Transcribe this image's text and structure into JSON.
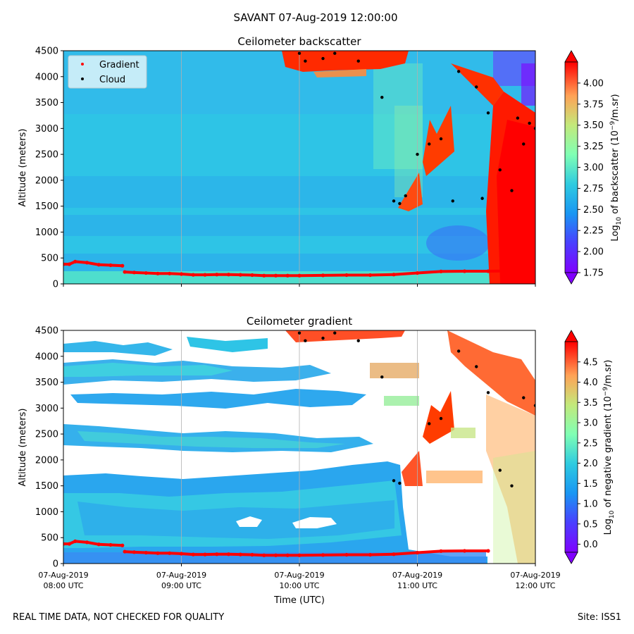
{
  "suptitle": "SAVANT 07-Aug-2019 12:00:00",
  "footer_left": "REAL TIME DATA, NOT CHECKED FOR QUALITY",
  "footer_right": "Site: ISS1",
  "xlabel": "Time (UTC)",
  "x_tick_labels": [
    [
      "07-Aug-2019",
      "08:00 UTC"
    ],
    [
      "07-Aug-2019",
      "09:00 UTC"
    ],
    [
      "07-Aug-2019",
      "10:00 UTC"
    ],
    [
      "07-Aug-2019",
      "11:00 UTC"
    ],
    [
      "07-Aug-2019",
      "12:00 UTC"
    ]
  ],
  "colors": {
    "gradient_marker": "#ff0000",
    "cloud_marker": "#000000",
    "background_cyan": "#2ec4e6"
  },
  "chart_data": [
    {
      "type": "heatmap",
      "title": "Ceilometer backscatter",
      "ylabel": "Altitude (meters)",
      "xlim": [
        "07-Aug-2019 08:00",
        "07-Aug-2019 12:00"
      ],
      "ylim": [
        0,
        4500
      ],
      "y_ticks": [
        0,
        500,
        1000,
        1500,
        2000,
        2500,
        3000,
        3500,
        4000,
        4500
      ],
      "colormap": "rainbow",
      "colorbar_label": "Log10 of backscatter (10^-9/m.sr)",
      "colorbar_range": [
        1.75,
        4.25
      ],
      "colorbar_ticks": [
        "1.75",
        "2.00",
        "2.25",
        "2.50",
        "2.75",
        "3.00",
        "3.25",
        "3.50",
        "3.75",
        "4.00"
      ],
      "legend": {
        "position": "upper-left",
        "entries": [
          {
            "name": "Gradient",
            "color": "#ff0000"
          },
          {
            "name": "Cloud",
            "color": "#000000"
          }
        ]
      },
      "grid": "vertical lines at hourly ticks",
      "gradient_series": {
        "x_hours": [
          8.0,
          8.05,
          8.1,
          8.2,
          8.3,
          8.4,
          8.5,
          8.52,
          8.6,
          8.7,
          8.8,
          8.9,
          9.0,
          9.1,
          9.2,
          9.3,
          9.4,
          9.5,
          9.6,
          9.7,
          9.8,
          9.9,
          10.0,
          10.2,
          10.4,
          10.6,
          10.8,
          11.0,
          11.2,
          11.4,
          11.6,
          11.75
        ],
        "altitude_m": [
          380,
          380,
          430,
          410,
          370,
          360,
          350,
          230,
          220,
          210,
          200,
          200,
          190,
          175,
          175,
          180,
          180,
          175,
          170,
          160,
          160,
          160,
          160,
          165,
          170,
          170,
          180,
          210,
          240,
          245,
          245,
          250
        ]
      },
      "cloud_series": {
        "x_hours": [
          10.0,
          10.05,
          10.2,
          10.3,
          10.5,
          10.7,
          10.8,
          10.85,
          10.9,
          11.0,
          11.1,
          11.2,
          11.3,
          11.35,
          11.5,
          11.55,
          11.6,
          11.7,
          11.8,
          11.85,
          11.9,
          11.95,
          12.0
        ],
        "altitude_m": [
          4450,
          4300,
          4350,
          4450,
          4300,
          3600,
          1600,
          1550,
          1700,
          2500,
          2700,
          2800,
          1600,
          4100,
          3800,
          1650,
          3300,
          2200,
          1800,
          3200,
          2700,
          3100,
          3000
        ]
      }
    },
    {
      "type": "heatmap",
      "title": "Ceilometer gradient",
      "ylabel": "Altitude (meters)",
      "xlabel": "Time (UTC)",
      "xlim": [
        "07-Aug-2019 08:00",
        "07-Aug-2019 12:00"
      ],
      "ylim": [
        0,
        4500
      ],
      "y_ticks": [
        0,
        500,
        1000,
        1500,
        2000,
        2500,
        3000,
        3500,
        4000,
        4500
      ],
      "colormap": "rainbow",
      "colorbar_label": "Log10 of negative gradient (10^-9/m.sr)",
      "colorbar_range": [
        -0.2,
        5.0
      ],
      "colorbar_ticks": [
        "0.0",
        "0.5",
        "1.0",
        "1.5",
        "2.0",
        "2.5",
        "3.0",
        "3.5",
        "4.0",
        "4.5"
      ],
      "grid": "vertical lines at hourly ticks",
      "gradient_series": {
        "x_hours": [
          8.0,
          8.05,
          8.1,
          8.2,
          8.3,
          8.4,
          8.5,
          8.52,
          8.6,
          8.7,
          8.8,
          8.9,
          9.0,
          9.1,
          9.2,
          9.3,
          9.4,
          9.5,
          9.6,
          9.7,
          9.8,
          9.9,
          10.0,
          10.2,
          10.4,
          10.6,
          10.8,
          11.0,
          11.2,
          11.4,
          11.6
        ],
        "altitude_m": [
          380,
          380,
          430,
          410,
          370,
          360,
          350,
          230,
          220,
          210,
          200,
          200,
          190,
          175,
          175,
          180,
          180,
          175,
          170,
          160,
          160,
          160,
          160,
          165,
          170,
          170,
          180,
          210,
          240,
          245,
          245
        ]
      },
      "cloud_series": {
        "x_hours": [
          10.0,
          10.05,
          10.2,
          10.3,
          10.5,
          10.7,
          10.8,
          10.85,
          11.1,
          11.2,
          11.35,
          11.5,
          11.6,
          11.7,
          11.8,
          11.9,
          12.0
        ],
        "altitude_m": [
          4450,
          4300,
          4350,
          4450,
          4300,
          3600,
          1600,
          1550,
          2700,
          2800,
          4100,
          3800,
          3300,
          1800,
          1500,
          3200,
          3050
        ]
      }
    }
  ]
}
